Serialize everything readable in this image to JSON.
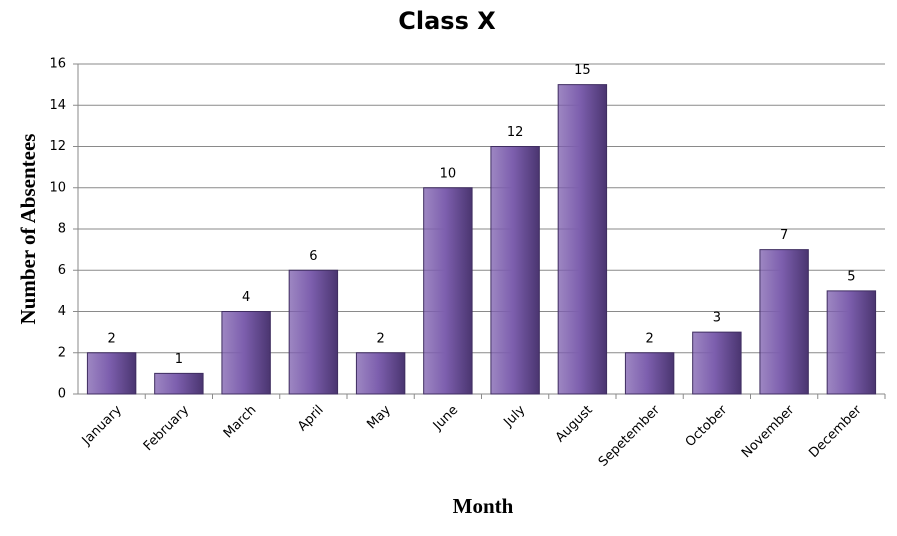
{
  "chart_data": {
    "type": "bar",
    "title": "Class X",
    "x_label": "Month",
    "y_label": "Number of Absentees",
    "categories": [
      "January",
      "February",
      "March",
      "April",
      "May",
      "June",
      "July",
      "August",
      "Sepetember",
      "October",
      "November",
      "December"
    ],
    "values": [
      2,
      1,
      4,
      6,
      2,
      10,
      12,
      15,
      2,
      3,
      7,
      5
    ],
    "color": "#7d5fae",
    "ylim": [
      0,
      16
    ],
    "yticks": [
      0,
      2,
      4,
      6,
      8,
      10,
      12,
      14,
      16
    ],
    "grid": true
  }
}
